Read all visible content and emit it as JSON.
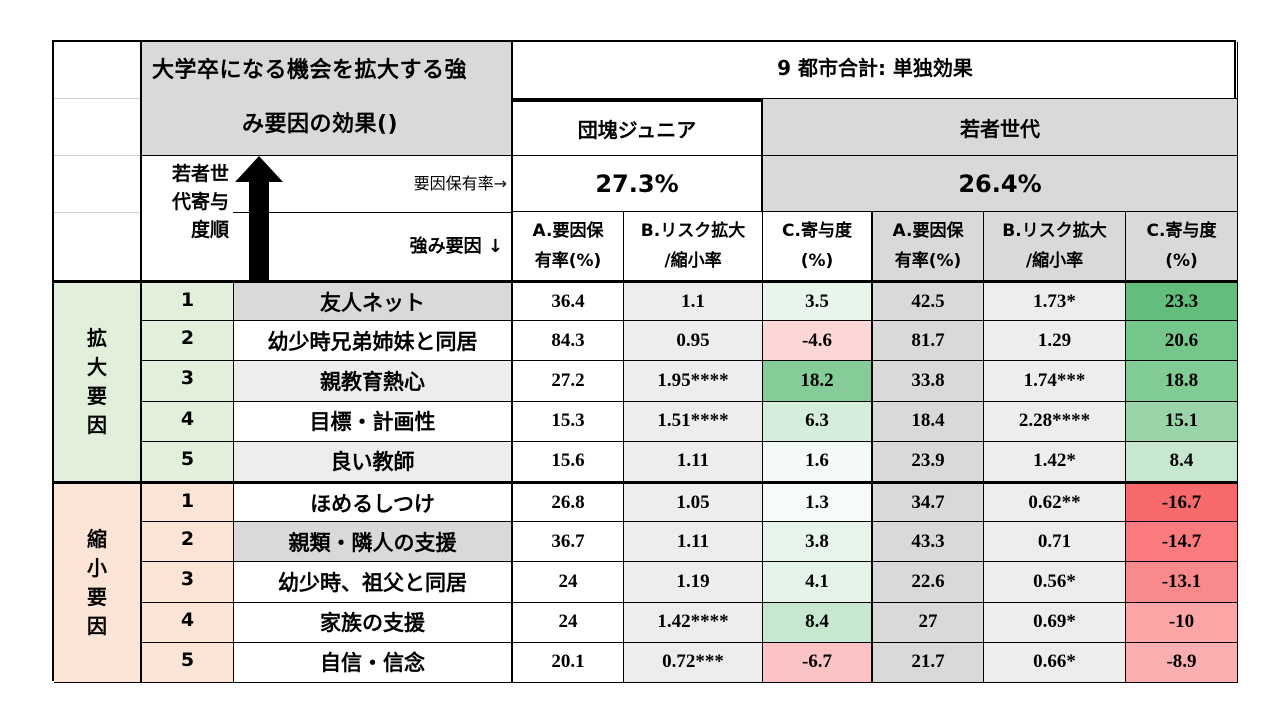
{
  "header": {
    "title_line1": "大学卒になる機会を拡大する強",
    "title_line2": "み要因の効果()",
    "main_label": "9 都市合計: 単独効果",
    "group1": "団塊ジュニア",
    "group2": "若者世代",
    "rate_label": "要因保有率→",
    "strength_label": "強み要因 ↓",
    "rank_label": [
      "若者世",
      "代寄与",
      "度順"
    ],
    "group1_rate": "27.3%",
    "group2_rate": "26.4%",
    "col_a": [
      "A.要因保",
      "有率(%)"
    ],
    "col_b": [
      "B.リスク拡大",
      "/縮小率"
    ],
    "col_c": [
      "C.寄与度",
      "(%)"
    ]
  },
  "sections": {
    "expand": [
      "拡",
      "大",
      "要",
      "因"
    ],
    "shrink": [
      "縮",
      "小",
      "要",
      "因"
    ]
  },
  "rows": [
    {
      "rank": "1",
      "factor": "友人ネット",
      "a1": "36.4",
      "b1": "1.1",
      "c1": "3.5",
      "a2": "42.5",
      "b2": "1.73*",
      "c2": "23.3"
    },
    {
      "rank": "2",
      "factor": "幼少時兄弟姉妹と同居",
      "a1": "84.3",
      "b1": "0.95",
      "c1": "-4.6",
      "a2": "81.7",
      "b2": "1.29",
      "c2": "20.6"
    },
    {
      "rank": "3",
      "factor": "親教育熱心",
      "a1": "27.2",
      "b1": "1.95****",
      "c1": "18.2",
      "a2": "33.8",
      "b2": "1.74***",
      "c2": "18.8"
    },
    {
      "rank": "4",
      "factor": "目標・計画性",
      "a1": "15.3",
      "b1": "1.51****",
      "c1": "6.3",
      "a2": "18.4",
      "b2": "2.28****",
      "c2": "15.1"
    },
    {
      "rank": "5",
      "factor": "良い教師",
      "a1": "15.6",
      "b1": "1.11",
      "c1": "1.6",
      "a2": "23.9",
      "b2": "1.42*",
      "c2": "8.4"
    },
    {
      "rank": "1",
      "factor": "ほめるしつけ",
      "a1": "26.8",
      "b1": "1.05",
      "c1": "1.3",
      "a2": "34.7",
      "b2": "0.62**",
      "c2": "-16.7"
    },
    {
      "rank": "2",
      "factor": "親類・隣人の支援",
      "a1": "36.7",
      "b1": "1.11",
      "c1": "3.8",
      "a2": "43.3",
      "b2": "0.71",
      "c2": "-14.7"
    },
    {
      "rank": "3",
      "factor": "幼少時、祖父と同居",
      "a1": "24",
      "b1": "1.19",
      "c1": "4.1",
      "a2": "22.6",
      "b2": "0.56*",
      "c2": "-13.1"
    },
    {
      "rank": "4",
      "factor": "家族の支援",
      "a1": "24",
      "b1": "1.42****",
      "c1": "8.4",
      "a2": "27",
      "b2": "0.69*",
      "c2": "-10"
    },
    {
      "rank": "5",
      "factor": "自信・信念",
      "a1": "20.1",
      "b1": "0.72***",
      "c1": "-6.7",
      "a2": "21.7",
      "b2": "0.66*",
      "c2": "-8.9"
    }
  ],
  "colors": {
    "header_gray": "#d9d9d9",
    "expand_bg": "#e2efda",
    "shrink_bg": "#fce4d6",
    "positive_scale": "#63be7b",
    "negative_scale": "#f8696b"
  }
}
